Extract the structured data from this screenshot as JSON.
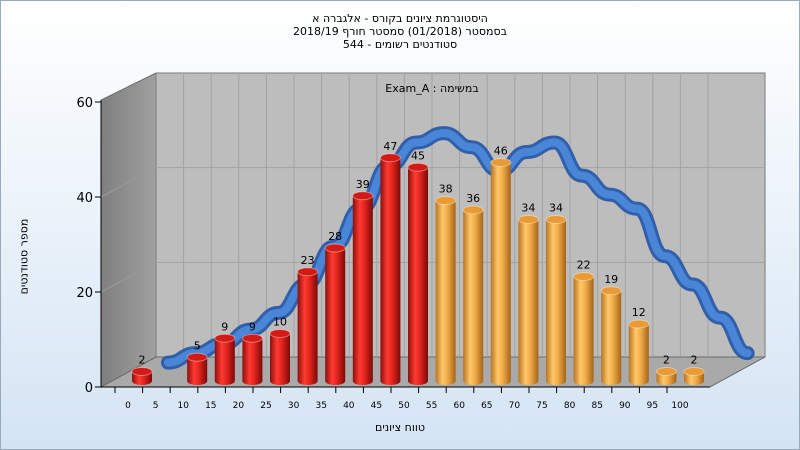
{
  "chart": {
    "title_lines": [
      "היסטוגרמת ציונים בקורס - אלגברה א",
      "בסמסטר  (01/2018)  סמסטר חורף 2018/19",
      "סטודנטים רשומים - 544"
    ]
  },
  "colors": {
    "red": "#e0241e",
    "orange": "#f0ab48",
    "curve": "#3a6fc0",
    "wall_left": "#8e8e8e",
    "wall_back": "#b9b9b9",
    "floor": "#a8a8a8"
  },
  "chart_data": {
    "type": "bar",
    "title": "היסטוגרמת ציונים בקורס - אלגברה א",
    "subtitle": "בסמסטר  (01/2018)  סמסטר חורף 2018/19 | סטודנטים רשומים - 544",
    "annotation": "Exam_A : במשימה",
    "xlabel": "טווח ציונים",
    "ylabel": "מספר סטודנטים",
    "x_ticks": [
      "0",
      "5",
      "10",
      "15",
      "20",
      "25",
      "30",
      "35",
      "40",
      "45",
      "50",
      "55",
      "60",
      "65",
      "70",
      "75",
      "80",
      "85",
      "90",
      "95",
      "100"
    ],
    "y_ticks": [
      "0",
      "20",
      "40",
      "60"
    ],
    "ylim": [
      0,
      60
    ],
    "bar_x": [
      0,
      10,
      15,
      20,
      25,
      30,
      35,
      40,
      45,
      50,
      55,
      60,
      65,
      70,
      75,
      80,
      85,
      90,
      95,
      100
    ],
    "values": [
      2,
      5,
      9,
      9,
      10,
      23,
      28,
      39,
      47,
      45,
      38,
      36,
      46,
      34,
      34,
      22,
      19,
      12,
      2,
      2
    ],
    "bar_colors": [
      "red",
      "red",
      "red",
      "red",
      "red",
      "red",
      "red",
      "red",
      "red",
      "red",
      "orange",
      "orange",
      "orange",
      "orange",
      "orange",
      "orange",
      "orange",
      "orange",
      "orange",
      "orange"
    ],
    "curve_values": [
      0.5,
      2.5,
      4.5,
      7.5,
      11,
      17,
      25,
      33,
      42,
      47,
      49,
      46,
      41,
      45,
      47,
      40,
      36,
      33,
      23,
      17,
      10,
      2.5
    ]
  }
}
